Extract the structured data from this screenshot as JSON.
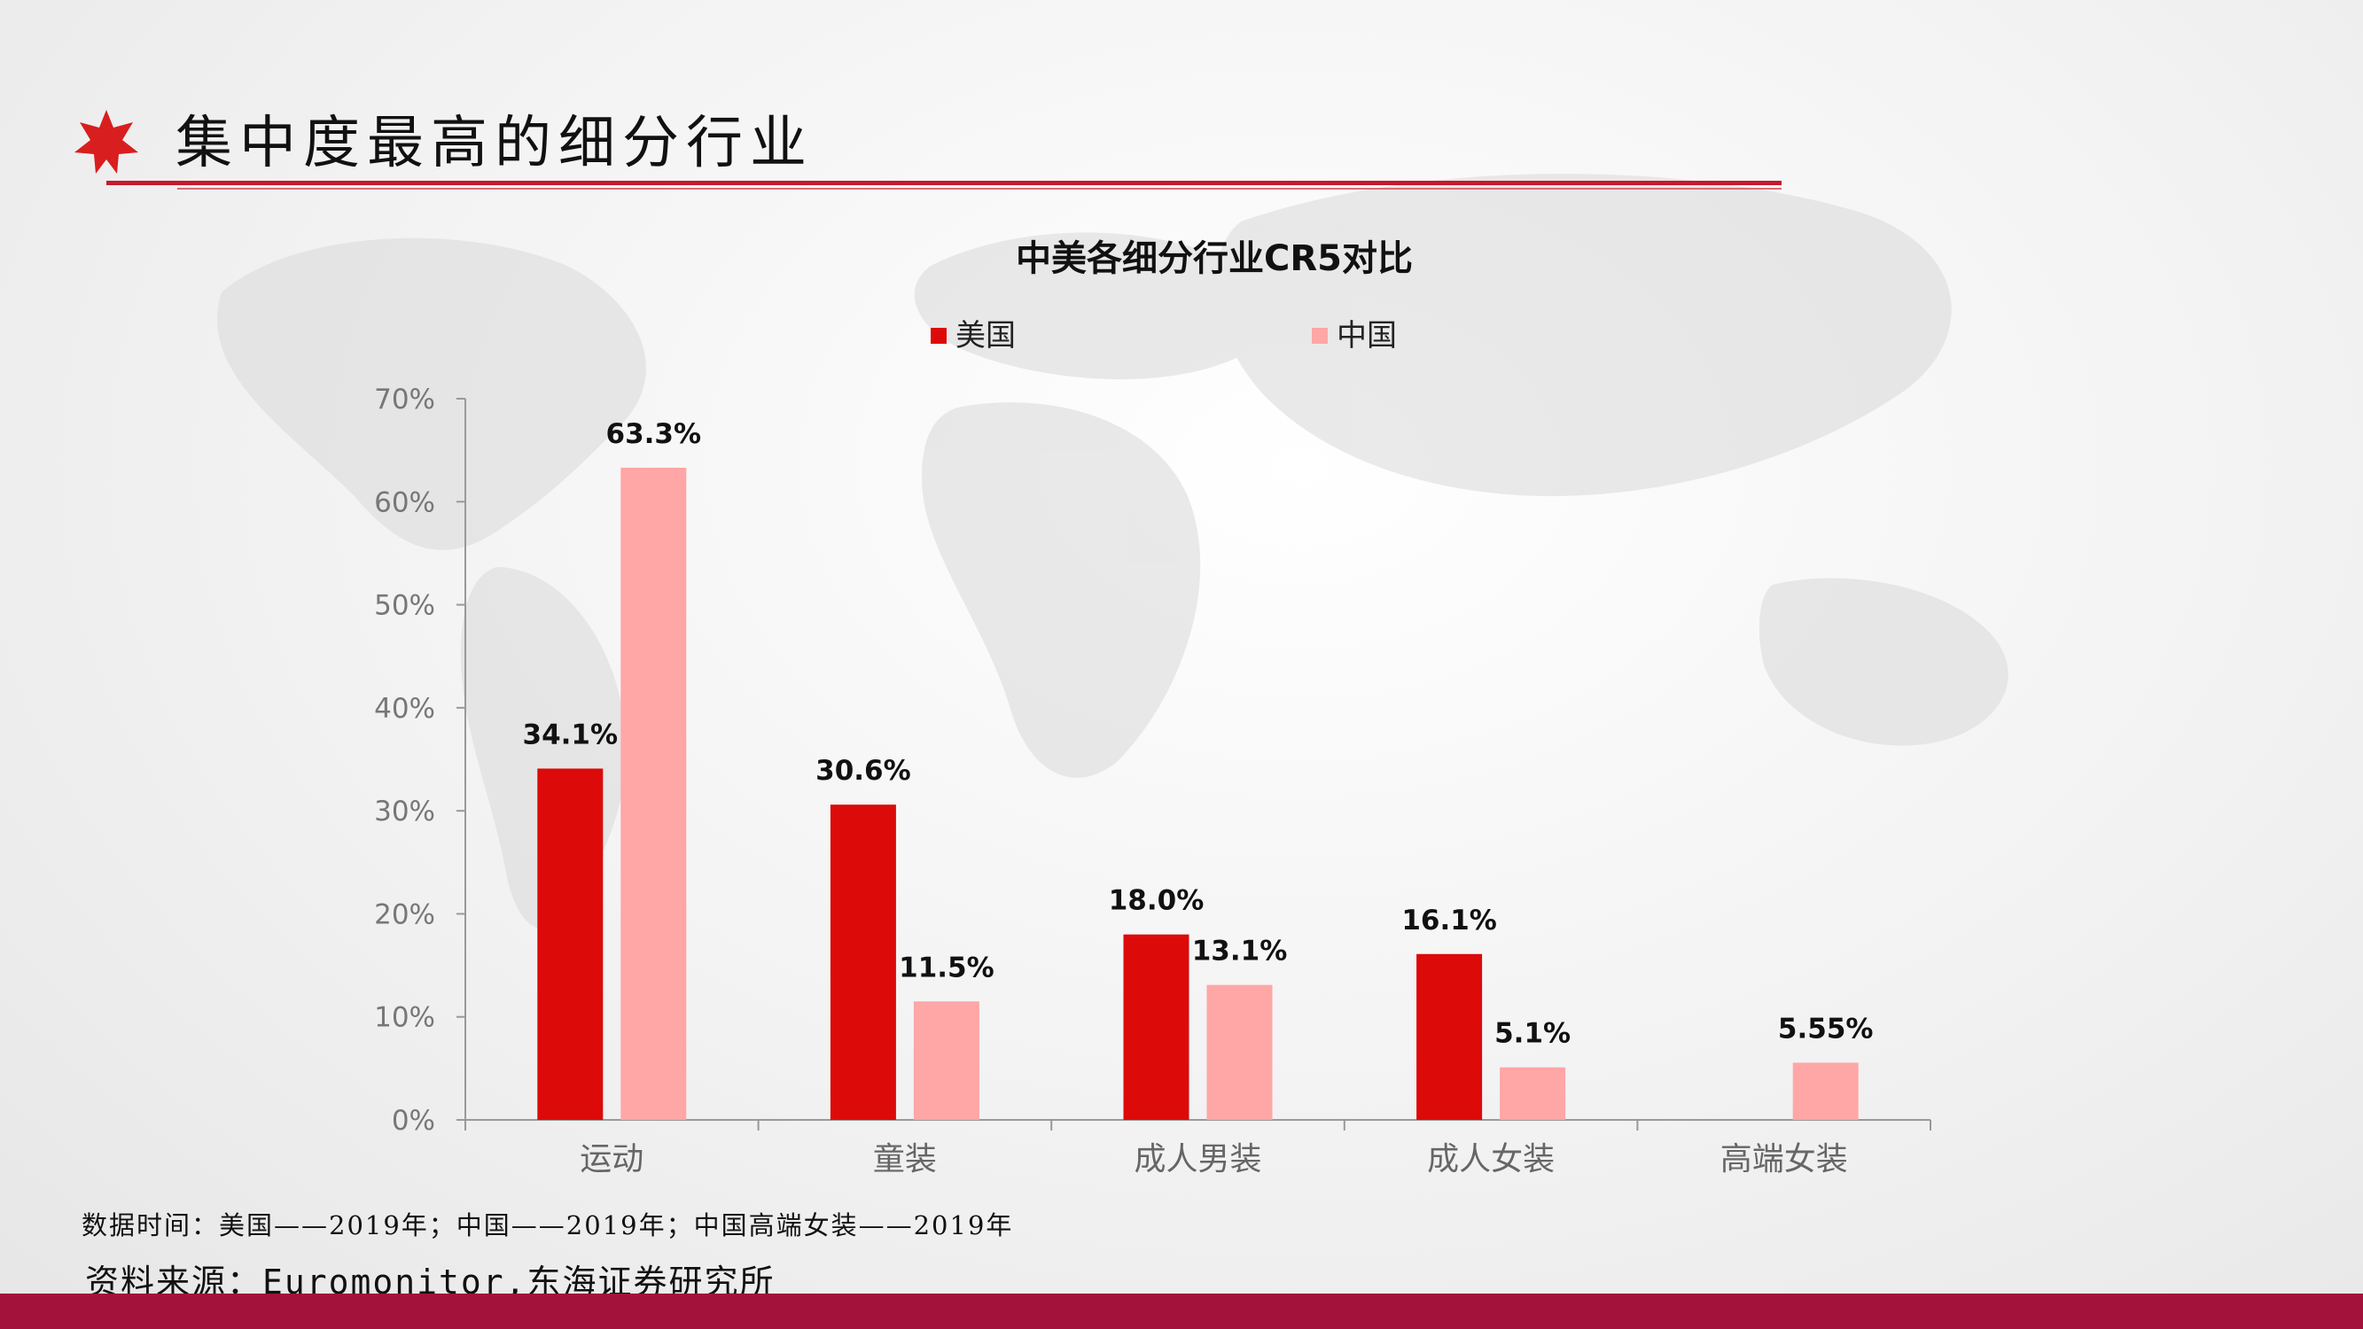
{
  "page": {
    "title": "集中度最高的细分行业",
    "footnote": "数据时间：美国——2019年；中国——2019年；中国高端女装——2019年",
    "source": "资料来源：Euromonitor,东海证券研究所",
    "accent_color": "#c41a2e",
    "footer_color": "#a3123a"
  },
  "chart_data": {
    "type": "bar",
    "title": "中美各细分行业CR5对比",
    "categories": [
      "运动",
      "童装",
      "成人男装",
      "成人女装",
      "高端女装"
    ],
    "series": [
      {
        "name": "美国",
        "color": "#dd0a0a",
        "values": [
          34.1,
          30.6,
          18.0,
          16.1,
          null
        ],
        "labels": [
          "34.1%",
          "30.6%",
          "18.0%",
          "16.1%",
          ""
        ]
      },
      {
        "name": "中国",
        "color": "#ffa6a6",
        "values": [
          63.3,
          11.5,
          13.1,
          5.1,
          5.55
        ],
        "labels": [
          "63.3%",
          "11.5%",
          "13.1%",
          "5.1%",
          "5.55%"
        ]
      }
    ],
    "ylim": [
      0,
      70
    ],
    "yticks": [
      "0%",
      "10%",
      "20%",
      "30%",
      "40%",
      "50%",
      "60%",
      "70%"
    ],
    "legend_position": "top",
    "grid": false
  }
}
